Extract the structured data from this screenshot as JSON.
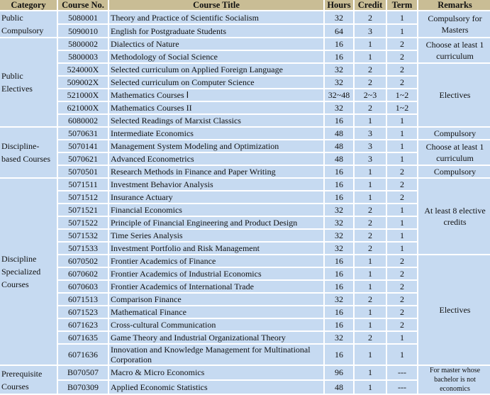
{
  "headers": [
    "Category",
    "Course No.",
    "Course Title",
    "Hours",
    "Credit",
    "Term",
    "Remarks"
  ],
  "groups": [
    {
      "category": "Public Compulsory",
      "rows": [
        [
          "5080001",
          "Theory and Practice of Scientific Socialism",
          "32",
          "2",
          "1"
        ],
        [
          "5090010",
          "English for Postgraduate Students",
          "64",
          "3",
          "1"
        ]
      ],
      "remarks": [
        {
          "text": "Compulsory for Masters",
          "span": 2
        }
      ]
    },
    {
      "category": "Public Electives",
      "rows": [
        [
          "5800002",
          "Dialectics of Nature",
          "16",
          "1",
          "2"
        ],
        [
          "5800003",
          "Methodology of Social Science",
          "16",
          "1",
          "2"
        ],
        [
          "524000X",
          "Selected curriculum on Applied Foreign Language",
          "32",
          "2",
          "2"
        ],
        [
          "509002X",
          "Selected curriculum on Computer Science",
          "32",
          "2",
          "2"
        ],
        [
          "521000X",
          "Mathematics Courses Ⅰ",
          "32~48",
          "2~3",
          "1~2"
        ],
        [
          "621000X",
          "Mathematics Courses II",
          "32",
          "2",
          "1~2"
        ],
        [
          "6080002",
          "Selected Readings of Marxist Classics",
          "16",
          "1",
          "1"
        ]
      ],
      "remarks": [
        {
          "text": "Choose at least 1 curriculum",
          "span": 2
        },
        {
          "text": "Electives",
          "span": 5
        }
      ]
    },
    {
      "category": "Discipline-based Courses",
      "rows": [
        [
          "5070631",
          "Intermediate Economics",
          "48",
          "3",
          "1"
        ],
        [
          "5070141",
          "Management System Modeling and Optimization",
          "48",
          "3",
          "1"
        ],
        [
          "5070621",
          "Advanced Econometrics",
          "48",
          "3",
          "1"
        ],
        [
          "5070501",
          "Research Methods in Finance and Paper Writing",
          "16",
          "1",
          "2"
        ]
      ],
      "remarks": [
        {
          "text": "Compulsory",
          "span": 1
        },
        {
          "text": "Choose at least 1 curriculum",
          "span": 2
        },
        {
          "text": "Compulsory",
          "span": 1
        }
      ]
    },
    {
      "category": "Discipline Specialized Courses",
      "rows": [
        [
          "5071511",
          "Investment Behavior Analysis",
          "16",
          "1",
          "2"
        ],
        [
          "5071512",
          "Insurance Actuary",
          "16",
          "1",
          "2"
        ],
        [
          "5071521",
          "Financial Economics",
          "32",
          "2",
          "1"
        ],
        [
          "5071522",
          "Principle of Financial Engineering and Product Design",
          "32",
          "2",
          "1"
        ],
        [
          "5071532",
          "Time Series Analysis",
          "32",
          "2",
          "1"
        ],
        [
          "5071533",
          "Investment Portfolio and Risk Management",
          "32",
          "2",
          "1"
        ],
        [
          "6070502",
          "Frontier Academics  of Finance",
          "16",
          "1",
          "2"
        ],
        [
          "6070602",
          "Frontier Academics  of Industrial Economics",
          "16",
          "1",
          "2"
        ],
        [
          "6070603",
          "Frontier Academics  of International Trade",
          "16",
          "1",
          "2"
        ],
        [
          "6071513",
          "Comparison Finance",
          "32",
          "2",
          "2"
        ],
        [
          "6071523",
          "Mathematical Finance",
          "16",
          "1",
          "2"
        ],
        [
          "6071623",
          "Cross-cultural Communication",
          "16",
          "1",
          "2"
        ],
        [
          "6071635",
          "Game Theory and Industrial Organizational Theory",
          "32",
          "2",
          "1"
        ],
        [
          "6071636",
          "Innovation and Knowledge Management for Multinational Corporation",
          "16",
          "1",
          "1"
        ]
      ],
      "remarks": [
        {
          "text": "At least 8 elective credits",
          "span": 6
        },
        {
          "text": "Electives",
          "span": 8
        }
      ]
    },
    {
      "category": "Prerequisite Courses",
      "rows": [
        [
          "B070507",
          "Macro & Micro Economics",
          "96",
          "1",
          "---"
        ],
        [
          "B070309",
          "Applied Economic Statistics",
          "48",
          "1",
          "---"
        ]
      ],
      "remarks": [
        {
          "text": "For master whose bachelor is not economics",
          "span": 2,
          "small": true
        }
      ]
    }
  ]
}
